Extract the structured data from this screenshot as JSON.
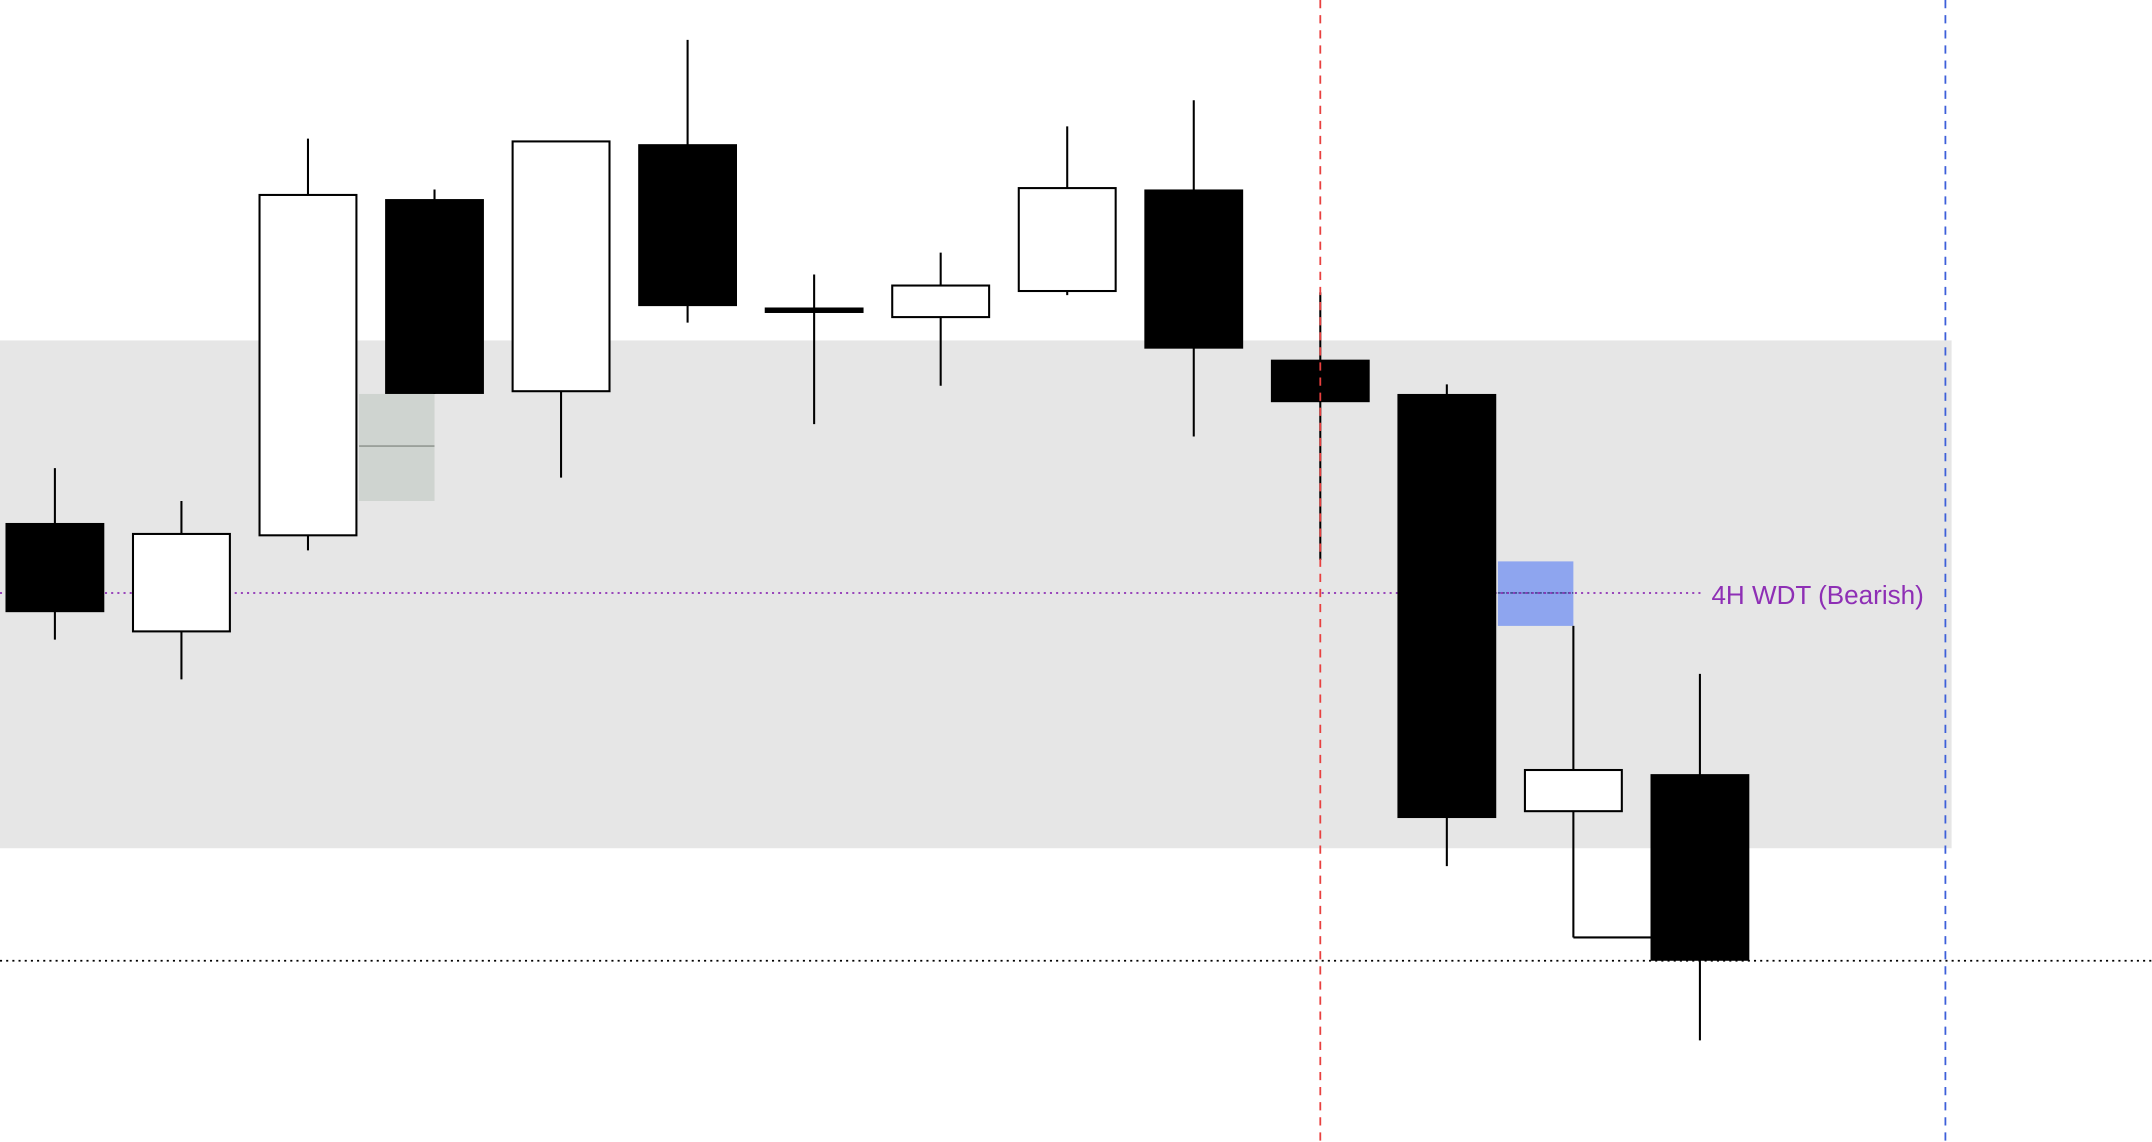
{
  "chart_data": {
    "type": "candlestick",
    "title": "",
    "xlabel": "",
    "ylabel": "",
    "grid": false,
    "colors": {
      "bullish_body": "#ffffff",
      "bearish_body": "#000000",
      "zone": "#e6e6e6",
      "small_zone": "#cfd4d0",
      "blue_zone": "#8ea5ef",
      "wdt_line": "#8e2fb5",
      "red_vline": "#e8403f",
      "blue_vline": "#3d5fd9",
      "level_line": "#000000"
    },
    "candles": [
      {
        "open": 45.1,
        "high": 49.1,
        "low": 36.6,
        "close": 38.6
      },
      {
        "open": 37.2,
        "high": 46.7,
        "low": 33.7,
        "close": 44.3
      },
      {
        "open": 44.2,
        "high": 73.1,
        "low": 43.1,
        "close": 69.0
      },
      {
        "open": 68.7,
        "high": 69.4,
        "low": 54.5,
        "close": 54.5
      },
      {
        "open": 54.7,
        "high": 72.9,
        "low": 48.4,
        "close": 72.9
      },
      {
        "open": 72.7,
        "high": 80.3,
        "low": 59.7,
        "close": 60.9
      },
      {
        "open": 60.6,
        "high": 63.2,
        "low": 52.3,
        "close": 60.6
      },
      {
        "open": 60.1,
        "high": 64.8,
        "low": 55.1,
        "close": 62.4
      },
      {
        "open": 62.0,
        "high": 74.0,
        "low": 61.7,
        "close": 69.5
      },
      {
        "open": 69.4,
        "high": 75.9,
        "low": 51.4,
        "close": 57.8
      },
      {
        "open": 57.0,
        "high": 61.9,
        "low": 42.4,
        "close": 53.9
      },
      {
        "open": 54.5,
        "high": 55.2,
        "low": 20.1,
        "close": 23.6
      },
      {
        "open": 24.1,
        "high": 37.6,
        "low": 14.9,
        "close": 27.1
      },
      {
        "open": 26.8,
        "high": 34.1,
        "low": 7.4,
        "close": 13.2
      }
    ],
    "zone": {
      "top": 58.4,
      "bottom": 21.4,
      "from_candle": 0,
      "to_candle": 15
    },
    "small_zone": {
      "top": 54.5,
      "bottom": 46.7,
      "mid": 50.7,
      "candle": 3
    },
    "blue_zone": {
      "top": 42.3,
      "bottom": 37.6,
      "mid": 40.0,
      "candle": 12
    },
    "wdt_level": {
      "price": 40.0,
      "label": "4H WDT (Bearish)"
    },
    "level_line": 13.2,
    "red_vline_candle": 10,
    "blue_vline_candle": 14.94
  }
}
